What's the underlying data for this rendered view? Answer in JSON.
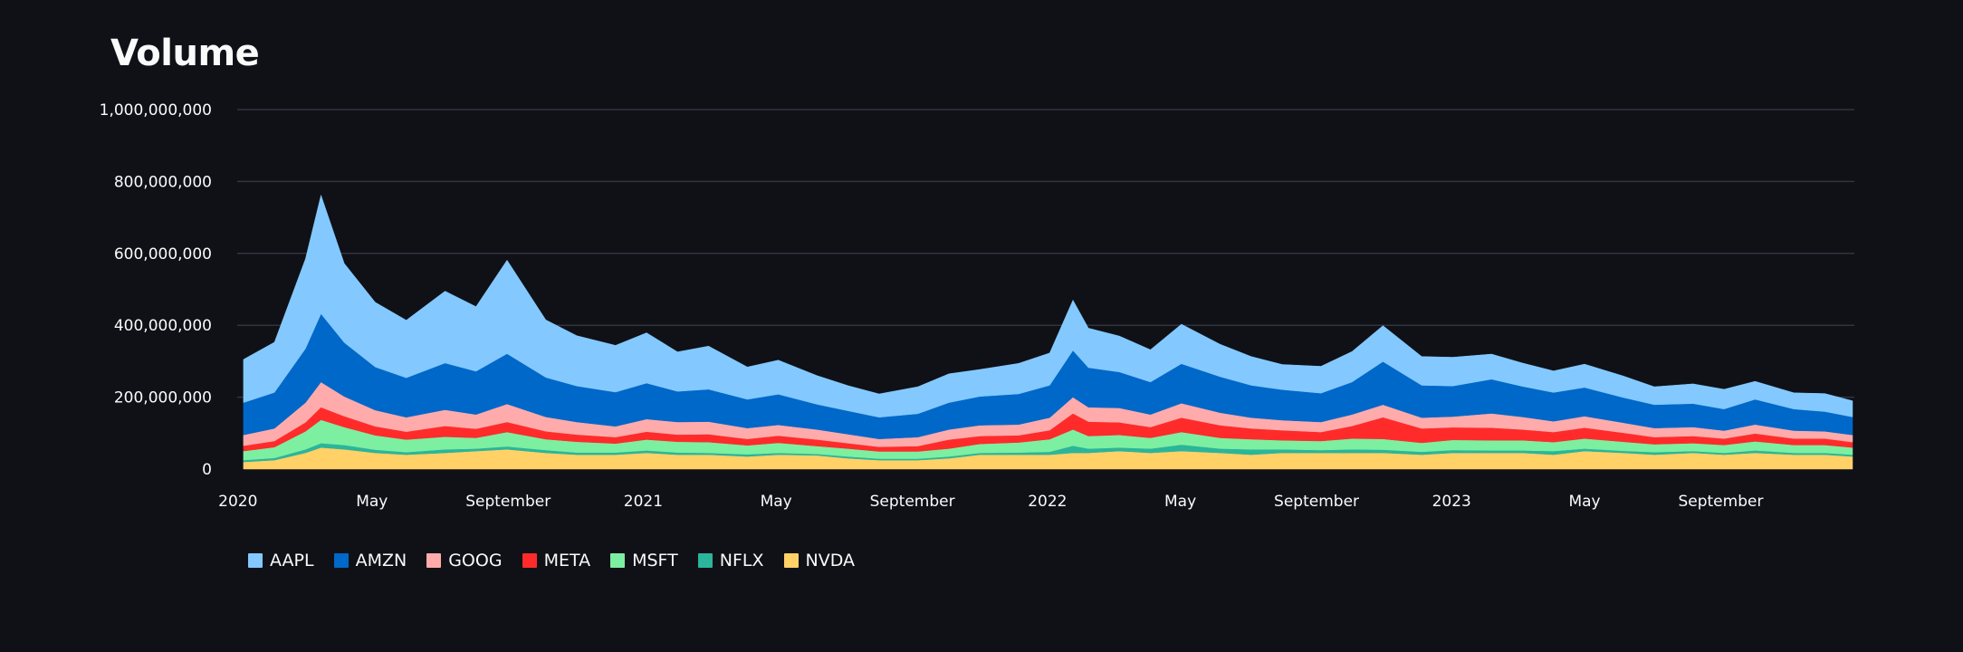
{
  "page": {
    "title": "Volume"
  },
  "chart_data": {
    "type": "area",
    "title": "Volume",
    "stacked": true,
    "ylim": [
      0,
      1000000000
    ],
    "y_ticks": [
      0,
      200000000,
      400000000,
      600000000,
      800000000,
      1000000000
    ],
    "y_tick_labels": [
      "0",
      "200,000,000",
      "400,000,000",
      "600,000,000",
      "800,000,000",
      "1,000,000,000"
    ],
    "x_range": [
      "2020-01-02",
      "2023-12-29"
    ],
    "x_ticks": [
      "2020-01-01",
      "2020-05-01",
      "2020-09-01",
      "2021-01-01",
      "2021-05-01",
      "2021-09-01",
      "2022-01-01",
      "2022-05-01",
      "2022-09-01",
      "2023-01-01",
      "2023-05-01",
      "2023-09-01"
    ],
    "x_tick_labels": [
      "2020",
      "May",
      "September",
      "2021",
      "May",
      "September",
      "2022",
      "May",
      "September",
      "2023",
      "May",
      "September"
    ],
    "grid": "horizontal",
    "legend_position": "bottom-left",
    "x": [
      "2020-01-06",
      "2020-02-03",
      "2020-03-02",
      "2020-03-16",
      "2020-04-06",
      "2020-05-04",
      "2020-06-01",
      "2020-07-06",
      "2020-08-03",
      "2020-08-31",
      "2020-10-05",
      "2020-11-02",
      "2020-12-07",
      "2021-01-04",
      "2021-02-01",
      "2021-03-01",
      "2021-04-05",
      "2021-05-03",
      "2021-06-07",
      "2021-07-05",
      "2021-08-02",
      "2021-09-06",
      "2021-10-04",
      "2021-11-01",
      "2021-12-06",
      "2022-01-03",
      "2022-01-24",
      "2022-02-07",
      "2022-03-07",
      "2022-04-04",
      "2022-05-02",
      "2022-06-06",
      "2022-07-04",
      "2022-08-01",
      "2022-09-05",
      "2022-10-03",
      "2022-10-31",
      "2022-12-05",
      "2023-01-02",
      "2023-02-06",
      "2023-03-06",
      "2023-04-03",
      "2023-05-01",
      "2023-06-05",
      "2023-07-03",
      "2023-08-07",
      "2023-09-04",
      "2023-10-02",
      "2023-11-06",
      "2023-12-04",
      "2023-12-29"
    ],
    "series": [
      {
        "name": "NVDA",
        "color": "#ffd166",
        "values": [
          20000000,
          25000000,
          45000000,
          60000000,
          55000000,
          45000000,
          40000000,
          45000000,
          50000000,
          55000000,
          45000000,
          40000000,
          40000000,
          45000000,
          40000000,
          40000000,
          35000000,
          40000000,
          38000000,
          30000000,
          25000000,
          25000000,
          30000000,
          40000000,
          40000000,
          40000000,
          45000000,
          45000000,
          50000000,
          45000000,
          50000000,
          45000000,
          40000000,
          45000000,
          45000000,
          45000000,
          45000000,
          40000000,
          45000000,
          45000000,
          45000000,
          40000000,
          50000000,
          45000000,
          40000000,
          45000000,
          40000000,
          45000000,
          40000000,
          40000000,
          35000000
        ]
      },
      {
        "name": "NFLX",
        "color": "#2bb59a",
        "values": [
          5000000,
          6000000,
          10000000,
          12000000,
          12000000,
          9000000,
          7000000,
          10000000,
          7000000,
          8000000,
          8000000,
          6000000,
          6000000,
          7000000,
          6000000,
          5000000,
          6000000,
          5000000,
          4000000,
          5000000,
          4000000,
          4000000,
          5000000,
          5000000,
          6000000,
          8000000,
          20000000,
          12000000,
          10000000,
          12000000,
          18000000,
          12000000,
          15000000,
          10000000,
          8000000,
          10000000,
          9000000,
          8000000,
          8000000,
          7000000,
          7000000,
          10000000,
          7000000,
          6000000,
          7000000,
          5000000,
          5000000,
          7000000,
          5000000,
          5000000,
          5000000
        ]
      },
      {
        "name": "MSFT",
        "color": "#7defa1",
        "values": [
          25000000,
          30000000,
          50000000,
          65000000,
          50000000,
          40000000,
          35000000,
          35000000,
          30000000,
          40000000,
          30000000,
          30000000,
          25000000,
          30000000,
          30000000,
          30000000,
          25000000,
          28000000,
          22000000,
          22000000,
          20000000,
          20000000,
          22000000,
          25000000,
          28000000,
          35000000,
          45000000,
          35000000,
          35000000,
          30000000,
          35000000,
          30000000,
          28000000,
          25000000,
          25000000,
          30000000,
          30000000,
          25000000,
          28000000,
          28000000,
          28000000,
          25000000,
          28000000,
          25000000,
          22000000,
          22000000,
          22000000,
          25000000,
          22000000,
          22000000,
          20000000
        ]
      },
      {
        "name": "META",
        "color": "#ff2b2b",
        "values": [
          15000000,
          17000000,
          25000000,
          35000000,
          30000000,
          25000000,
          22000000,
          30000000,
          25000000,
          28000000,
          22000000,
          20000000,
          18000000,
          22000000,
          20000000,
          22000000,
          18000000,
          20000000,
          18000000,
          15000000,
          13000000,
          15000000,
          25000000,
          22000000,
          20000000,
          25000000,
          45000000,
          40000000,
          35000000,
          30000000,
          40000000,
          35000000,
          30000000,
          28000000,
          25000000,
          35000000,
          60000000,
          40000000,
          35000000,
          35000000,
          30000000,
          28000000,
          30000000,
          25000000,
          20000000,
          20000000,
          18000000,
          22000000,
          18000000,
          18000000,
          15000000
        ]
      },
      {
        "name": "GOOG",
        "color": "#ffabab",
        "values": [
          30000000,
          35000000,
          55000000,
          70000000,
          55000000,
          45000000,
          40000000,
          45000000,
          40000000,
          50000000,
          40000000,
          35000000,
          30000000,
          35000000,
          35000000,
          35000000,
          30000000,
          30000000,
          28000000,
          25000000,
          22000000,
          25000000,
          28000000,
          30000000,
          30000000,
          35000000,
          45000000,
          40000000,
          40000000,
          35000000,
          40000000,
          35000000,
          30000000,
          28000000,
          28000000,
          32000000,
          35000000,
          30000000,
          30000000,
          40000000,
          35000000,
          30000000,
          32000000,
          28000000,
          25000000,
          25000000,
          22000000,
          25000000,
          22000000,
          20000000,
          20000000
        ]
      },
      {
        "name": "AMZN",
        "color": "#0068c9",
        "values": [
          90000000,
          100000000,
          150000000,
          190000000,
          150000000,
          120000000,
          110000000,
          130000000,
          120000000,
          140000000,
          110000000,
          100000000,
          95000000,
          100000000,
          85000000,
          90000000,
          80000000,
          85000000,
          70000000,
          65000000,
          60000000,
          65000000,
          75000000,
          80000000,
          85000000,
          90000000,
          130000000,
          110000000,
          100000000,
          90000000,
          110000000,
          100000000,
          90000000,
          85000000,
          80000000,
          90000000,
          120000000,
          90000000,
          85000000,
          95000000,
          85000000,
          80000000,
          80000000,
          70000000,
          65000000,
          65000000,
          60000000,
          70000000,
          60000000,
          55000000,
          50000000
        ]
      },
      {
        "name": "AAPL",
        "color": "#83c9ff",
        "values": [
          120000000,
          140000000,
          250000000,
          330000000,
          220000000,
          180000000,
          160000000,
          200000000,
          180000000,
          260000000,
          160000000,
          140000000,
          130000000,
          140000000,
          110000000,
          120000000,
          90000000,
          95000000,
          80000000,
          70000000,
          65000000,
          75000000,
          80000000,
          75000000,
          85000000,
          90000000,
          140000000,
          110000000,
          100000000,
          90000000,
          110000000,
          90000000,
          80000000,
          70000000,
          75000000,
          85000000,
          100000000,
          80000000,
          80000000,
          70000000,
          65000000,
          60000000,
          65000000,
          60000000,
          50000000,
          55000000,
          55000000,
          50000000,
          45000000,
          50000000,
          45000000
        ]
      }
    ],
    "legend_order": [
      "AAPL",
      "AMZN",
      "GOOG",
      "META",
      "MSFT",
      "NFLX",
      "NVDA"
    ]
  },
  "icons": {
    "legend_swatch": "square-swatch"
  }
}
